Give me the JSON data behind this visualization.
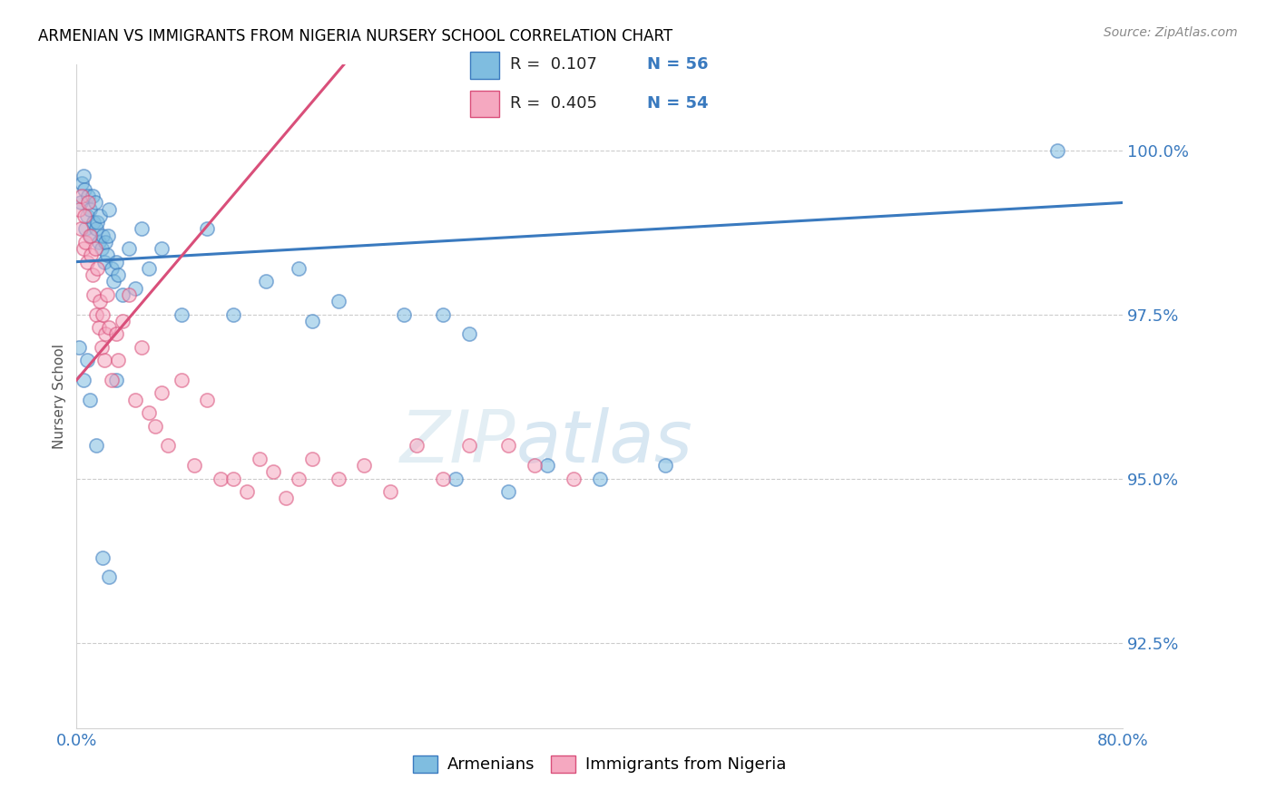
{
  "title": "ARMENIAN VS IMMIGRANTS FROM NIGERIA NURSERY SCHOOL CORRELATION CHART",
  "source": "Source: ZipAtlas.com",
  "ylabel": "Nursery School",
  "yticks": [
    92.5,
    95.0,
    97.5,
    100.0
  ],
  "ytick_labels": [
    "92.5%",
    "95.0%",
    "97.5%",
    "100.0%"
  ],
  "xlim": [
    0.0,
    80.0
  ],
  "ylim": [
    91.2,
    101.3
  ],
  "watermark": "ZIPatlas",
  "blue_color": "#6baed6",
  "pink_color": "#fa9fb5",
  "blue_line_color": "#3a7abf",
  "pink_line_color": "#d94f7a",
  "blue_scatter_color": "#7fbde0",
  "pink_scatter_color": "#f5a8c0",
  "arm_x": [
    0.3,
    0.4,
    0.5,
    0.6,
    0.7,
    0.8,
    0.9,
    1.0,
    1.1,
    1.2,
    1.3,
    1.4,
    1.5,
    1.6,
    1.7,
    1.8,
    1.9,
    2.0,
    2.1,
    2.2,
    2.3,
    2.4,
    2.5,
    2.7,
    2.8,
    3.0,
    3.2,
    3.5,
    4.0,
    4.5,
    5.0,
    5.5,
    6.5,
    8.0,
    10.0,
    12.0,
    14.5,
    17.0,
    18.0,
    20.0,
    25.0,
    28.0,
    29.0,
    30.0,
    33.0,
    36.0,
    40.0,
    45.0,
    75.0
  ],
  "arm_y": [
    99.2,
    99.5,
    99.6,
    99.4,
    98.8,
    99.0,
    99.3,
    99.1,
    98.7,
    99.3,
    98.9,
    99.2,
    98.8,
    98.9,
    98.6,
    99.0,
    98.5,
    98.7,
    98.3,
    98.6,
    98.4,
    98.7,
    99.1,
    98.2,
    98.0,
    98.3,
    98.1,
    97.8,
    98.5,
    97.9,
    98.8,
    98.2,
    98.5,
    97.5,
    98.8,
    97.5,
    98.0,
    98.2,
    97.4,
    97.7,
    97.5,
    97.5,
    95.0,
    97.2,
    94.8,
    95.2,
    95.0,
    95.2,
    100.0
  ],
  "arm_x2": [
    0.2,
    0.5,
    0.8,
    1.0,
    1.5,
    2.0,
    2.5,
    3.0
  ],
  "arm_y2": [
    97.0,
    96.5,
    96.8,
    96.2,
    95.5,
    93.8,
    93.5,
    96.5
  ],
  "nig_x": [
    0.2,
    0.3,
    0.4,
    0.5,
    0.6,
    0.7,
    0.8,
    0.9,
    1.0,
    1.1,
    1.2,
    1.3,
    1.4,
    1.5,
    1.6,
    1.7,
    1.8,
    1.9,
    2.0,
    2.1,
    2.2,
    2.3,
    2.5,
    2.7,
    3.0,
    3.2,
    3.5,
    4.0,
    4.5,
    5.0,
    5.5,
    6.0,
    6.5,
    7.0,
    8.0,
    9.0,
    10.0,
    11.0,
    12.0,
    13.0,
    14.0,
    15.0,
    16.0,
    17.0,
    18.0,
    20.0,
    22.0,
    24.0,
    26.0,
    28.0,
    30.0,
    33.0,
    35.0,
    38.0
  ],
  "nig_y": [
    99.1,
    98.8,
    99.3,
    98.5,
    99.0,
    98.6,
    98.3,
    99.2,
    98.7,
    98.4,
    98.1,
    97.8,
    98.5,
    97.5,
    98.2,
    97.3,
    97.7,
    97.0,
    97.5,
    96.8,
    97.2,
    97.8,
    97.3,
    96.5,
    97.2,
    96.8,
    97.4,
    97.8,
    96.2,
    97.0,
    96.0,
    95.8,
    96.3,
    95.5,
    96.5,
    95.2,
    96.2,
    95.0,
    95.0,
    94.8,
    95.3,
    95.1,
    94.7,
    95.0,
    95.3,
    95.0,
    95.2,
    94.8,
    95.5,
    95.0,
    95.5,
    95.5,
    95.2,
    95.0
  ]
}
